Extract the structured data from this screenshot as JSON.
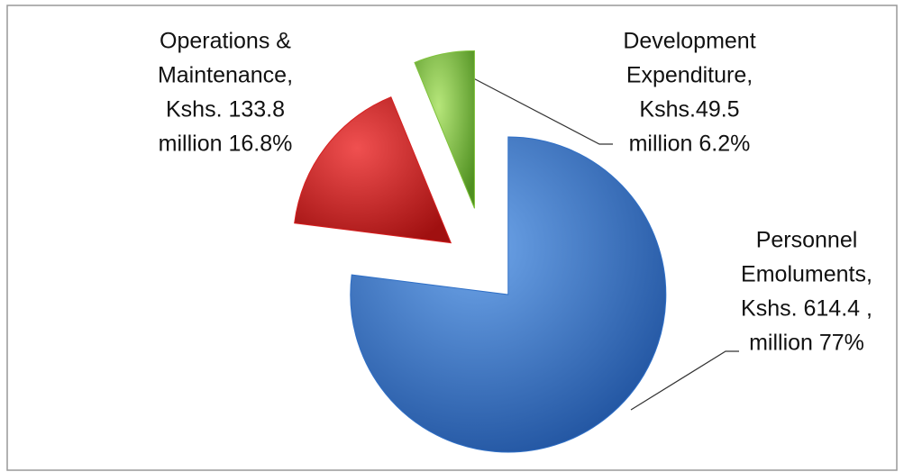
{
  "chart_data": {
    "type": "pie",
    "values": [
      77,
      16.8,
      6.2
    ],
    "value_labels": [
      [
        "Personnel",
        "Emoluments,",
        "Kshs. 614.4 ,",
        "million 77%"
      ],
      [
        "Operations &",
        "Maintenance,",
        "Kshs. 133.8",
        "million 16.8%"
      ],
      [
        "Development",
        "Expenditure,",
        "Kshs.49.5",
        "million  6.2%"
      ]
    ],
    "colors": [
      "#2f6fc6",
      "#d61f1f",
      "#7fc23b"
    ]
  }
}
